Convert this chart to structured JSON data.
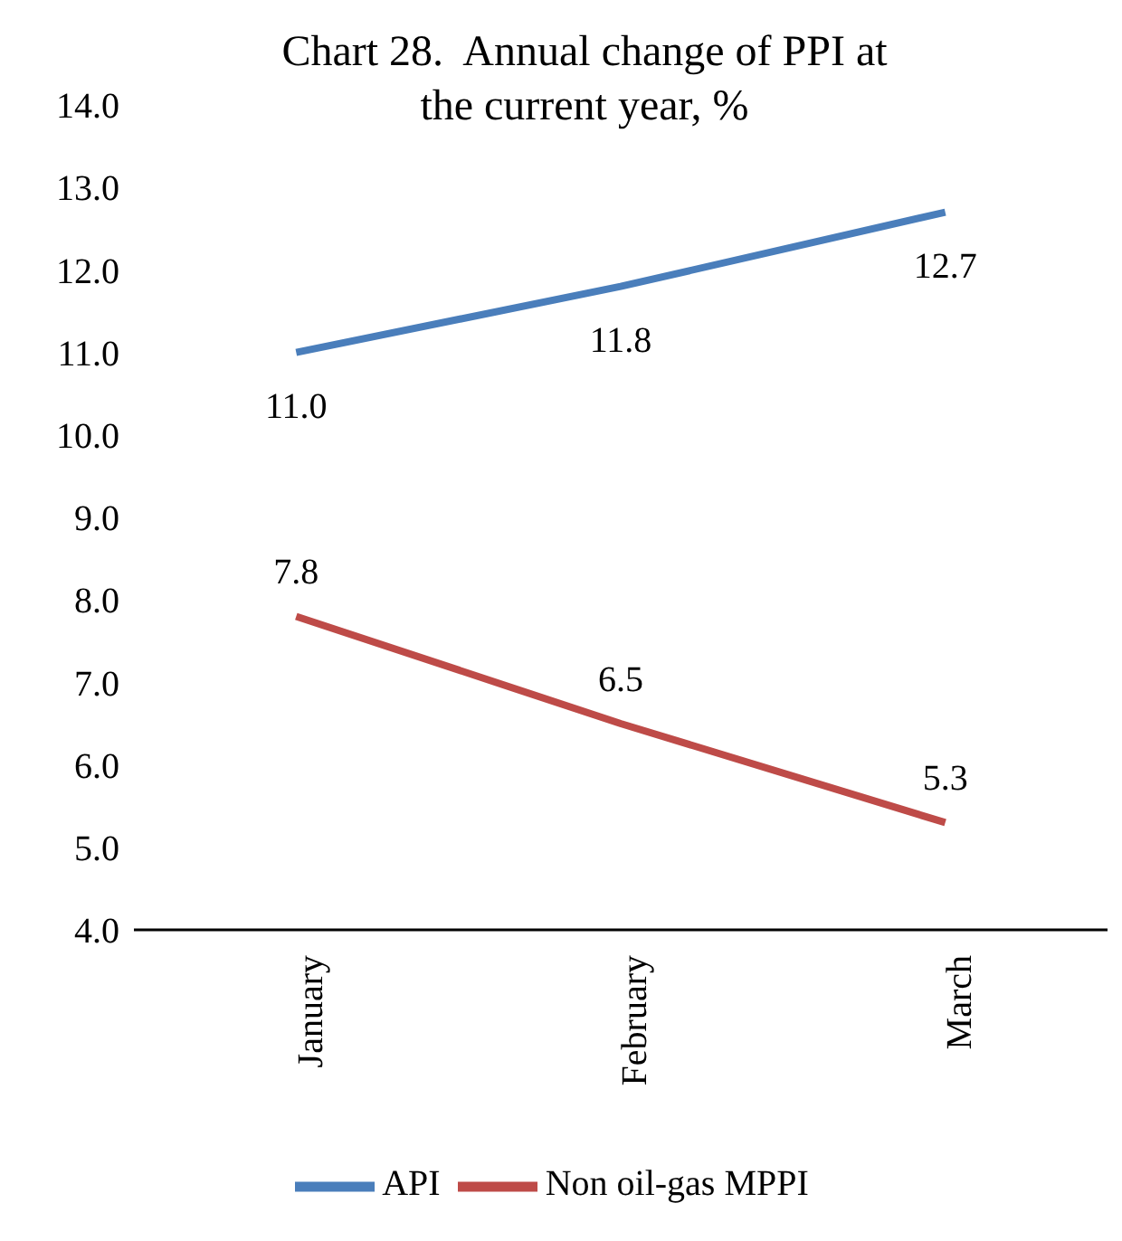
{
  "chart_data": {
    "type": "line",
    "title": "Chart 28.  Annual change of PPI at the current year, %",
    "categories": [
      "January",
      "February",
      "March"
    ],
    "series": [
      {
        "name": "API",
        "color": "#4a7ebb",
        "values": [
          11.0,
          11.8,
          12.7
        ],
        "value_labels": [
          "11.0",
          "11.8",
          "12.7"
        ]
      },
      {
        "name": "Non oil-gas MPPI",
        "color": "#be4b48",
        "values": [
          7.8,
          6.5,
          5.3
        ],
        "value_labels": [
          "7.8",
          "6.5",
          "5.3"
        ]
      }
    ],
    "ylim": [
      4,
      14
    ],
    "yticks": [
      {
        "value": 4,
        "label": "4.0"
      },
      {
        "value": 5,
        "label": "5.0"
      },
      {
        "value": 6,
        "label": "6.0"
      },
      {
        "value": 7,
        "label": "7.0"
      },
      {
        "value": 8,
        "label": "8.0"
      },
      {
        "value": 9,
        "label": "9.0"
      },
      {
        "value": 10,
        "label": "10.0"
      },
      {
        "value": 11,
        "label": "11.0"
      },
      {
        "value": 12,
        "label": "12.0"
      },
      {
        "value": 13,
        "label": "13.0"
      },
      {
        "value": 14,
        "label": "14.0"
      }
    ],
    "grid": false,
    "legend": "bottom",
    "marker": "none",
    "line_style": "solid"
  }
}
